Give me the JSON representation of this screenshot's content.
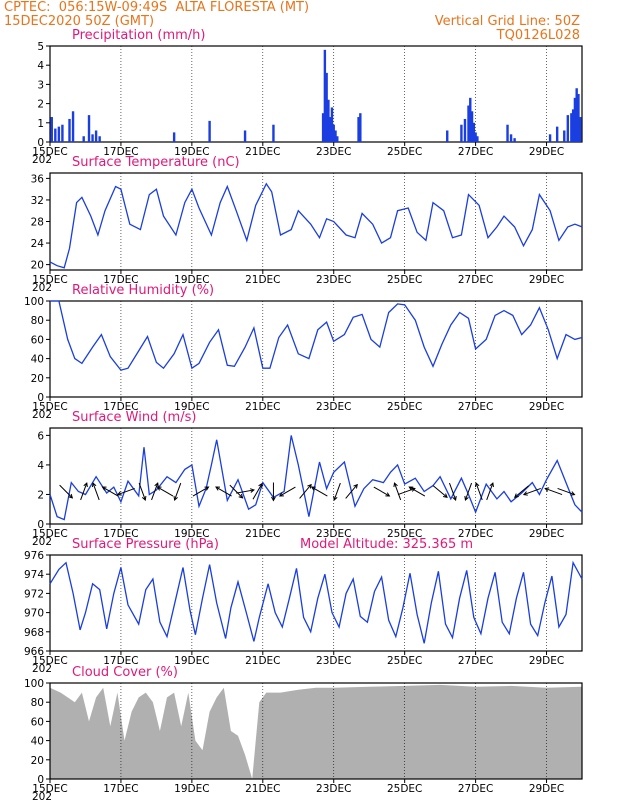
{
  "header": {
    "line1": "CPTEC:  056:15W-09:49S  ALTA FLORESTA (MT)",
    "line2": "15DEC2020 50Z (GMT)",
    "right1": "Vertical Grid Line: 50Z",
    "right2": "TQ0126L028"
  },
  "colors": {
    "line": "#1a3ee0",
    "header": "#e8741c",
    "title": "#e0197a",
    "cloud": "#b0b0b0",
    "arrow": "#000000"
  },
  "x_ticks": [
    "15DEC",
    "17DEC",
    "19DEC",
    "21DEC",
    "23DEC",
    "25DEC",
    "27DEC",
    "29DEC"
  ],
  "x_sub": "202",
  "model_altitude": "Model Altitude: 325.365 m",
  "chart_data": [
    {
      "type": "bar",
      "title": "Precipitation (mm/h)",
      "ylim": [
        0,
        5
      ],
      "yticks": [
        "0",
        "1",
        "2",
        "3",
        "4",
        "5"
      ],
      "xlim_days": [
        15,
        30
      ],
      "x_days": [
        15.05,
        15.15,
        15.25,
        15.35,
        15.55,
        15.65,
        15.95,
        16.1,
        16.2,
        16.3,
        16.4,
        18.5,
        19.5,
        20.5,
        21.3,
        22.7,
        22.75,
        22.8,
        22.85,
        22.9,
        22.95,
        23.0,
        23.05,
        23.1,
        23.7,
        23.75,
        26.2,
        26.6,
        26.7,
        26.8,
        26.85,
        26.9,
        26.95,
        27.0,
        27.05,
        27.9,
        28.0,
        28.1,
        29.1,
        29.3,
        29.5,
        29.6,
        29.7,
        29.75,
        29.8,
        29.85,
        29.9,
        29.95
      ],
      "values": [
        1.3,
        0.7,
        0.8,
        0.9,
        1.2,
        1.6,
        0.3,
        1.4,
        0.4,
        0.6,
        0.3,
        0.5,
        1.1,
        0.6,
        0.9,
        1.5,
        4.8,
        3.6,
        2.2,
        1.3,
        1.8,
        0.9,
        0.6,
        0.3,
        1.3,
        1.5,
        0.6,
        0.9,
        1.2,
        1.9,
        2.3,
        1.6,
        1.0,
        0.5,
        0.3,
        0.9,
        0.4,
        0.2,
        0.4,
        0.8,
        0.6,
        1.4,
        1.5,
        1.7,
        2.3,
        2.8,
        2.5,
        1.3
      ]
    },
    {
      "type": "line",
      "title": "Surface Temperature (nC)",
      "ylim": [
        19,
        37
      ],
      "yticks": [
        "20",
        "24",
        "28",
        "32",
        "36"
      ],
      "x_days": [
        15.0,
        15.2,
        15.4,
        15.55,
        15.75,
        15.9,
        16.15,
        16.35,
        16.55,
        16.85,
        17.0,
        17.25,
        17.55,
        17.8,
        18.0,
        18.2,
        18.55,
        18.8,
        19.0,
        19.2,
        19.55,
        19.8,
        20.0,
        20.25,
        20.55,
        20.8,
        21.1,
        21.25,
        21.5,
        21.8,
        22.0,
        22.35,
        22.6,
        22.8,
        23.0,
        23.35,
        23.6,
        23.8,
        24.1,
        24.35,
        24.6,
        24.8,
        25.1,
        25.35,
        25.6,
        25.8,
        26.1,
        26.35,
        26.6,
        26.8,
        27.1,
        27.35,
        27.6,
        27.8,
        28.1,
        28.35,
        28.6,
        28.8,
        29.1,
        29.35,
        29.6,
        29.8,
        30.0
      ],
      "values": [
        20.5,
        19.8,
        19.4,
        23.0,
        31.5,
        32.5,
        29.0,
        25.5,
        30.0,
        34.5,
        34.0,
        27.5,
        26.5,
        33.0,
        34.0,
        29.0,
        25.5,
        31.5,
        34.0,
        30.5,
        25.5,
        31.5,
        34.5,
        30.0,
        24.5,
        31.0,
        35.0,
        33.5,
        25.5,
        26.5,
        30.0,
        27.5,
        25.0,
        28.5,
        28.0,
        25.5,
        25.0,
        29.5,
        27.5,
        24.0,
        25.0,
        30.0,
        30.5,
        26.0,
        24.5,
        31.5,
        30.0,
        25.0,
        25.5,
        33.0,
        31.0,
        25.0,
        27.0,
        29.0,
        27.0,
        23.5,
        26.5,
        33.0,
        30.0,
        24.5,
        27.0,
        27.5,
        27.0
      ]
    },
    {
      "type": "line",
      "title": "Relative Humidity (%)",
      "ylim": [
        0,
        100
      ],
      "yticks": [
        "0",
        "20",
        "40",
        "60",
        "80",
        "100"
      ],
      "x_days": [
        15.0,
        15.25,
        15.5,
        15.7,
        15.9,
        16.2,
        16.45,
        16.7,
        17.0,
        17.2,
        17.5,
        17.75,
        18.0,
        18.2,
        18.5,
        18.75,
        19.0,
        19.2,
        19.5,
        19.75,
        20.0,
        20.2,
        20.5,
        20.75,
        21.0,
        21.2,
        21.45,
        21.7,
        22.0,
        22.3,
        22.55,
        22.8,
        23.0,
        23.3,
        23.55,
        23.8,
        24.05,
        24.3,
        24.55,
        24.8,
        25.0,
        25.3,
        25.55,
        25.8,
        26.05,
        26.3,
        26.55,
        26.8,
        27.0,
        27.3,
        27.55,
        27.8,
        28.05,
        28.3,
        28.55,
        28.8,
        29.05,
        29.3,
        29.55,
        29.8,
        30.0
      ],
      "values": [
        100,
        100,
        60,
        40,
        35,
        52,
        65,
        42,
        28,
        30,
        48,
        63,
        36,
        30,
        45,
        65,
        30,
        35,
        57,
        70,
        33,
        32,
        52,
        72,
        30,
        30,
        62,
        75,
        45,
        40,
        70,
        78,
        58,
        65,
        83,
        86,
        60,
        52,
        88,
        97,
        96,
        80,
        52,
        32,
        55,
        75,
        88,
        82,
        50,
        60,
        85,
        90,
        85,
        65,
        75,
        93,
        70,
        40,
        65,
        60,
        62
      ]
    },
    {
      "type": "line",
      "title": "Surface Wind (m/s)",
      "ylim": [
        0,
        6.5
      ],
      "yticks": [
        "0",
        "2",
        "4",
        "6"
      ],
      "x_days": [
        15.0,
        15.2,
        15.4,
        15.6,
        15.8,
        16.0,
        16.3,
        16.6,
        16.8,
        17.0,
        17.2,
        17.5,
        17.65,
        17.8,
        18.0,
        18.3,
        18.55,
        18.8,
        19.0,
        19.2,
        19.4,
        19.55,
        19.7,
        20.0,
        20.3,
        20.6,
        20.8,
        21.0,
        21.3,
        21.6,
        21.8,
        22.0,
        22.3,
        22.6,
        22.8,
        23.0,
        23.3,
        23.6,
        23.85,
        24.1,
        24.4,
        24.6,
        24.8,
        25.0,
        25.3,
        25.55,
        25.8,
        26.0,
        26.3,
        26.6,
        26.8,
        27.0,
        27.3,
        27.6,
        27.8,
        28.0,
        28.3,
        28.6,
        28.8,
        29.0,
        29.3,
        29.6,
        29.8,
        30.0
      ],
      "values": [
        2.0,
        0.5,
        0.3,
        2.8,
        2.2,
        2.0,
        3.2,
        2.1,
        2.5,
        1.5,
        2.9,
        1.9,
        5.2,
        2.0,
        2.3,
        3.2,
        2.8,
        3.7,
        4.0,
        1.2,
        2.4,
        4.0,
        5.7,
        1.6,
        3.0,
        1.0,
        1.3,
        2.8,
        1.8,
        2.2,
        6.0,
        4.0,
        0.5,
        4.2,
        2.4,
        3.5,
        4.2,
        1.2,
        2.4,
        3.0,
        2.8,
        3.5,
        4.0,
        2.7,
        3.1,
        2.2,
        2.6,
        3.2,
        1.7,
        3.1,
        2.0,
        0.8,
        2.7,
        1.7,
        2.2,
        1.5,
        2.1,
        2.8,
        2.0,
        3.0,
        4.3,
        2.5,
        1.3,
        0.8
      ]
    },
    {
      "type": "line",
      "title": "Surface Pressure (hPa)",
      "ylim": [
        966,
        976
      ],
      "yticks": [
        "966",
        "968",
        "970",
        "972",
        "974",
        "976"
      ],
      "x_days": [
        15.0,
        15.25,
        15.45,
        15.65,
        15.85,
        16.0,
        16.2,
        16.4,
        16.6,
        16.8,
        17.0,
        17.2,
        17.5,
        17.7,
        17.9,
        18.1,
        18.3,
        18.55,
        18.75,
        18.95,
        19.1,
        19.3,
        19.5,
        19.7,
        19.95,
        20.1,
        20.3,
        20.55,
        20.75,
        20.9,
        21.15,
        21.35,
        21.55,
        21.75,
        21.95,
        22.15,
        22.35,
        22.55,
        22.75,
        22.95,
        23.15,
        23.35,
        23.55,
        23.75,
        23.95,
        24.15,
        24.35,
        24.55,
        24.75,
        24.95,
        25.15,
        25.35,
        25.55,
        25.75,
        25.95,
        26.15,
        26.35,
        26.55,
        26.75,
        26.95,
        27.15,
        27.35,
        27.55,
        27.75,
        27.95,
        28.15,
        28.35,
        28.55,
        28.75,
        28.95,
        29.15,
        29.35,
        29.55,
        29.75,
        30.0
      ],
      "values": [
        973.0,
        974.5,
        975.2,
        972.0,
        968.2,
        970.0,
        973.0,
        972.4,
        968.3,
        972.0,
        974.7,
        970.8,
        968.8,
        972.4,
        973.5,
        969.0,
        967.5,
        971.5,
        974.7,
        970.2,
        967.7,
        971.5,
        975.0,
        971.0,
        967.3,
        970.5,
        973.2,
        969.8,
        967.0,
        969.5,
        973.0,
        970.0,
        968.5,
        971.5,
        974.6,
        969.5,
        968.0,
        971.5,
        974.0,
        970.0,
        968.5,
        972.0,
        973.5,
        969.6,
        969.0,
        972.2,
        973.7,
        969.2,
        967.5,
        970.5,
        974.1,
        969.8,
        966.8,
        971.0,
        974.3,
        968.8,
        967.4,
        971.5,
        974.4,
        969.5,
        967.8,
        971.5,
        974.2,
        969.0,
        967.8,
        971.5,
        974.2,
        968.8,
        967.6,
        971.0,
        973.8,
        968.5,
        969.8,
        975.2,
        973.5
      ]
    },
    {
      "type": "area",
      "title": "Cloud Cover (%)",
      "ylim": [
        0,
        100
      ],
      "yticks": [
        "0",
        "20",
        "40",
        "60",
        "80",
        "100"
      ],
      "x_days": [
        15.0,
        15.3,
        15.5,
        15.7,
        15.9,
        16.1,
        16.3,
        16.5,
        16.7,
        16.9,
        17.1,
        17.3,
        17.5,
        17.7,
        17.9,
        18.1,
        18.3,
        18.5,
        18.7,
        18.9,
        19.1,
        19.3,
        19.5,
        19.7,
        19.9,
        20.1,
        20.3,
        20.5,
        20.7,
        20.9,
        21.1,
        21.5,
        22.0,
        22.5,
        23.0,
        24.0,
        25.0,
        26.0,
        27.0,
        28.0,
        29.0,
        30.0
      ],
      "values": [
        95,
        90,
        85,
        80,
        90,
        60,
        85,
        95,
        55,
        90,
        40,
        70,
        85,
        90,
        80,
        50,
        85,
        90,
        55,
        90,
        40,
        30,
        70,
        85,
        95,
        50,
        45,
        25,
        0,
        80,
        90,
        90,
        93,
        95,
        95,
        96,
        97,
        98,
        96,
        97,
        95,
        96
      ]
    }
  ],
  "wind_arrows": [
    {
      "day": 15.45,
      "dir_deg": 135
    },
    {
      "day": 15.95,
      "dir_deg": 20
    },
    {
      "day": 16.3,
      "dir_deg": 340
    },
    {
      "day": 16.7,
      "dir_deg": 300
    },
    {
      "day": 17.15,
      "dir_deg": 250
    },
    {
      "day": 17.6,
      "dir_deg": 160
    },
    {
      "day": 17.95,
      "dir_deg": 20
    },
    {
      "day": 18.25,
      "dir_deg": 300
    },
    {
      "day": 18.6,
      "dir_deg": 200
    },
    {
      "day": 19.25,
      "dir_deg": 60
    },
    {
      "day": 19.9,
      "dir_deg": 300
    },
    {
      "day": 20.25,
      "dir_deg": 135
    },
    {
      "day": 20.5,
      "dir_deg": 80
    },
    {
      "day": 20.85,
      "dir_deg": 30
    },
    {
      "day": 21.3,
      "dir_deg": 180
    },
    {
      "day": 21.7,
      "dir_deg": 240
    },
    {
      "day": 22.2,
      "dir_deg": 40
    },
    {
      "day": 22.6,
      "dir_deg": 300
    },
    {
      "day": 23.1,
      "dir_deg": 200
    },
    {
      "day": 23.5,
      "dir_deg": 40
    },
    {
      "day": 24.35,
      "dir_deg": 120
    },
    {
      "day": 24.8,
      "dir_deg": 340
    },
    {
      "day": 25.05,
      "dir_deg": 70
    },
    {
      "day": 25.35,
      "dir_deg": 300
    },
    {
      "day": 26.0,
      "dir_deg": 130
    },
    {
      "day": 26.35,
      "dir_deg": 160
    },
    {
      "day": 26.8,
      "dir_deg": 200
    },
    {
      "day": 27.1,
      "dir_deg": 340
    },
    {
      "day": 27.4,
      "dir_deg": 20
    },
    {
      "day": 28.3,
      "dir_deg": 230
    },
    {
      "day": 28.6,
      "dir_deg": 250
    },
    {
      "day": 29.2,
      "dir_deg": 290
    },
    {
      "day": 29.55,
      "dir_deg": 110
    }
  ]
}
